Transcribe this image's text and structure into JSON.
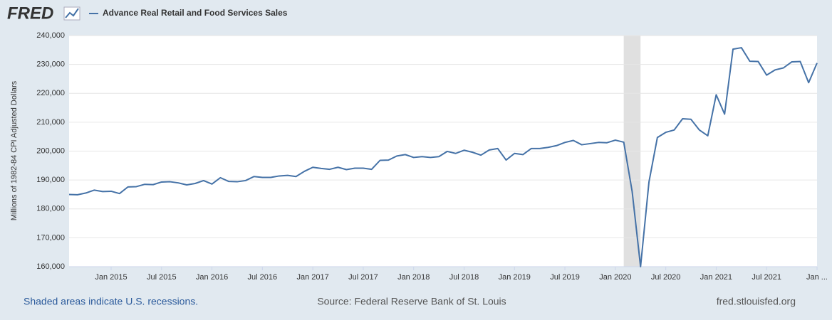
{
  "chart_data": {
    "type": "line",
    "logo": "FRED",
    "ylabel": "Millions of 1982-84 CPI Adjusted Dollars",
    "caption": "Shaded areas indicate U.S. recessions.",
    "source": "Source: Federal Reserve Bank of St. Louis",
    "site": "fred.stlouisfed.org",
    "grid": true,
    "x": [
      "2014-08",
      "2014-09",
      "2014-10",
      "2014-11",
      "2014-12",
      "2015-01",
      "2015-02",
      "2015-03",
      "2015-04",
      "2015-05",
      "2015-06",
      "2015-07",
      "2015-08",
      "2015-09",
      "2015-10",
      "2015-11",
      "2015-12",
      "2016-01",
      "2016-02",
      "2016-03",
      "2016-04",
      "2016-05",
      "2016-06",
      "2016-07",
      "2016-08",
      "2016-09",
      "2016-10",
      "2016-11",
      "2016-12",
      "2017-01",
      "2017-02",
      "2017-03",
      "2017-04",
      "2017-05",
      "2017-06",
      "2017-07",
      "2017-08",
      "2017-09",
      "2017-10",
      "2017-11",
      "2017-12",
      "2018-01",
      "2018-02",
      "2018-03",
      "2018-04",
      "2018-05",
      "2018-06",
      "2018-07",
      "2018-08",
      "2018-09",
      "2018-10",
      "2018-11",
      "2018-12",
      "2019-01",
      "2019-02",
      "2019-03",
      "2019-04",
      "2019-05",
      "2019-06",
      "2019-07",
      "2019-08",
      "2019-09",
      "2019-10",
      "2019-11",
      "2019-12",
      "2020-01",
      "2020-02",
      "2020-03",
      "2020-04",
      "2020-05",
      "2020-06",
      "2020-07",
      "2020-08",
      "2020-09",
      "2020-10",
      "2020-11",
      "2020-12",
      "2021-01",
      "2021-02",
      "2021-03",
      "2021-04",
      "2021-05",
      "2021-06",
      "2021-07",
      "2021-08",
      "2021-09",
      "2021-10",
      "2021-11",
      "2021-12",
      "2022-01"
    ],
    "series": [
      {
        "name": "Advance Real Retail and Food Services Sales",
        "color": "#4572a7",
        "values": [
          185000,
          184900,
          185500,
          186500,
          186000,
          186100,
          185300,
          187600,
          187700,
          188500,
          188400,
          189300,
          189400,
          189000,
          188300,
          188800,
          189800,
          188600,
          190800,
          189500,
          189400,
          189800,
          191200,
          190900,
          190900,
          191400,
          191600,
          191200,
          193000,
          194400,
          194000,
          193700,
          194400,
          193600,
          194100,
          194100,
          193700,
          196800,
          196900,
          198300,
          198800,
          197800,
          198100,
          197800,
          198100,
          199900,
          199200,
          200300,
          199600,
          198600,
          200400,
          200900,
          196900,
          199200,
          198800,
          200900,
          200900,
          201300,
          201900,
          203000,
          203700,
          202200,
          202600,
          203000,
          202900,
          203800,
          203100,
          186000,
          160000,
          189300,
          204700,
          206500,
          207300,
          211200,
          211000,
          207300,
          205300,
          219500,
          212800,
          235300,
          235800,
          231100,
          231000,
          226300,
          228100,
          228800,
          230900,
          231000,
          223700,
          230500
        ]
      }
    ],
    "recessions": [
      {
        "start": "2020-02",
        "end": "2020-04"
      }
    ],
    "ylim": [
      160000,
      240000
    ],
    "yticks": [
      {
        "value": 160000,
        "label": "160,000"
      },
      {
        "value": 170000,
        "label": "170,000"
      },
      {
        "value": 180000,
        "label": "180,000"
      },
      {
        "value": 190000,
        "label": "190,000"
      },
      {
        "value": 200000,
        "label": "200,000"
      },
      {
        "value": 210000,
        "label": "210,000"
      },
      {
        "value": 220000,
        "label": "220,000"
      },
      {
        "value": 230000,
        "label": "230,000"
      },
      {
        "value": 240000,
        "label": "240,000"
      }
    ],
    "xticks": [
      {
        "value": "2015-01",
        "label": "Jan 2015"
      },
      {
        "value": "2015-07",
        "label": "Jul 2015"
      },
      {
        "value": "2016-01",
        "label": "Jan 2016"
      },
      {
        "value": "2016-07",
        "label": "Jul 2016"
      },
      {
        "value": "2017-01",
        "label": "Jan 2017"
      },
      {
        "value": "2017-07",
        "label": "Jul 2017"
      },
      {
        "value": "2018-01",
        "label": "Jan 2018"
      },
      {
        "value": "2018-07",
        "label": "Jul 2018"
      },
      {
        "value": "2019-01",
        "label": "Jan 2019"
      },
      {
        "value": "2019-07",
        "label": "Jul 2019"
      },
      {
        "value": "2020-01",
        "label": "Jan 2020"
      },
      {
        "value": "2020-07",
        "label": "Jul 2020"
      },
      {
        "value": "2021-01",
        "label": "Jan 2021"
      },
      {
        "value": "2021-07",
        "label": "Jul 2021"
      },
      {
        "value": "2022-01",
        "label": "Jan ..."
      }
    ]
  }
}
